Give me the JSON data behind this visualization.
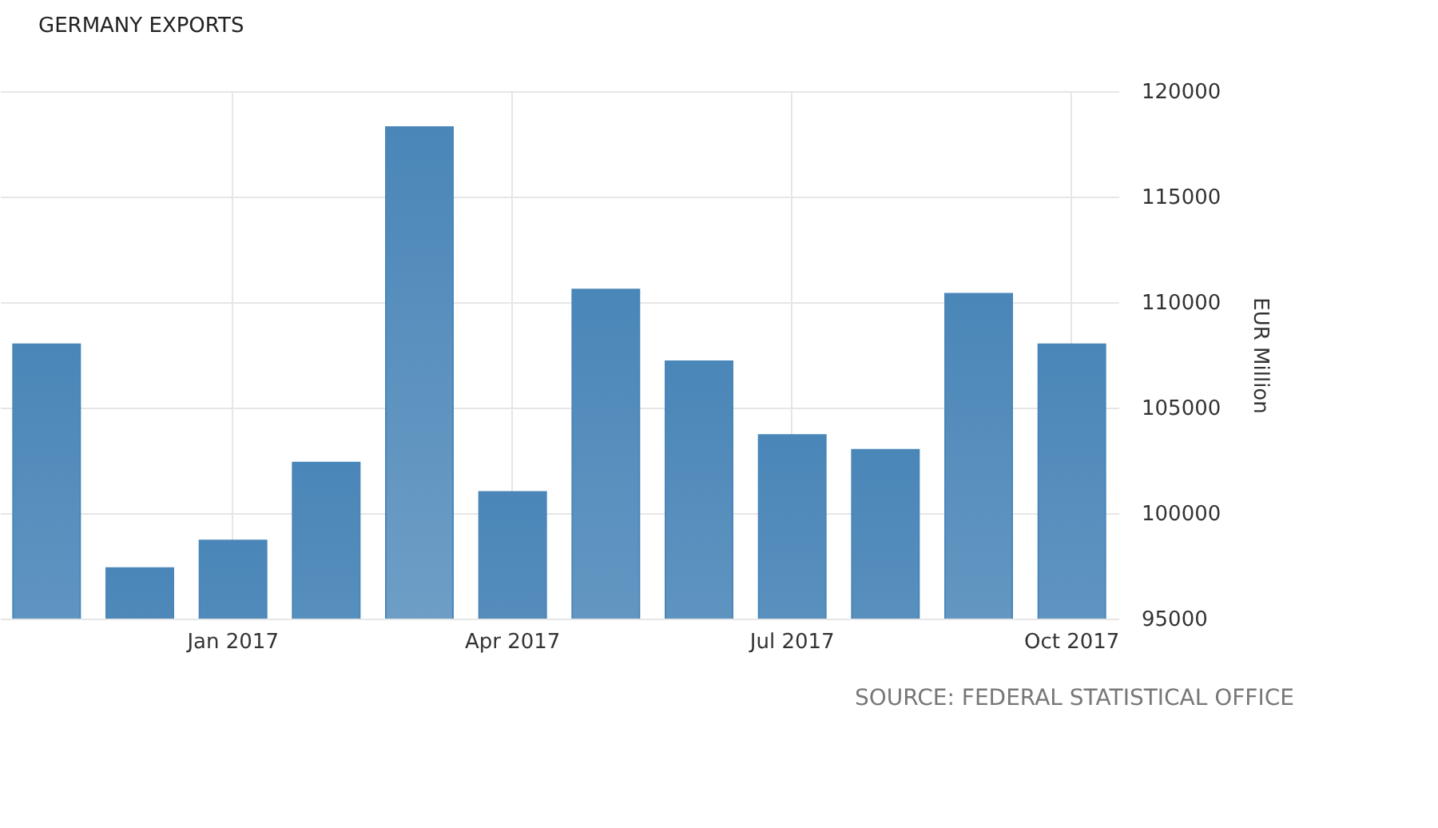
{
  "chart_data": {
    "type": "bar",
    "title": "GERMANY EXPORTS",
    "ylabel": "EUR Million",
    "categories": [
      null,
      null,
      "Jan 2017",
      null,
      null,
      "Apr 2017",
      null,
      null,
      "Jul 2017",
      null,
      null,
      "Oct 2017"
    ],
    "values": [
      108000,
      97400,
      98700,
      102400,
      118300,
      101000,
      110600,
      107200,
      103700,
      103000,
      110400,
      108000
    ],
    "color": "#4a86b8",
    "ylim": [
      95000,
      120000
    ],
    "yticks": [
      95000,
      100000,
      105000,
      110000,
      115000,
      120000
    ],
    "grid": true,
    "annotations": [
      "SOURCE: FEDERAL STATISTICAL OFFICE"
    ]
  }
}
